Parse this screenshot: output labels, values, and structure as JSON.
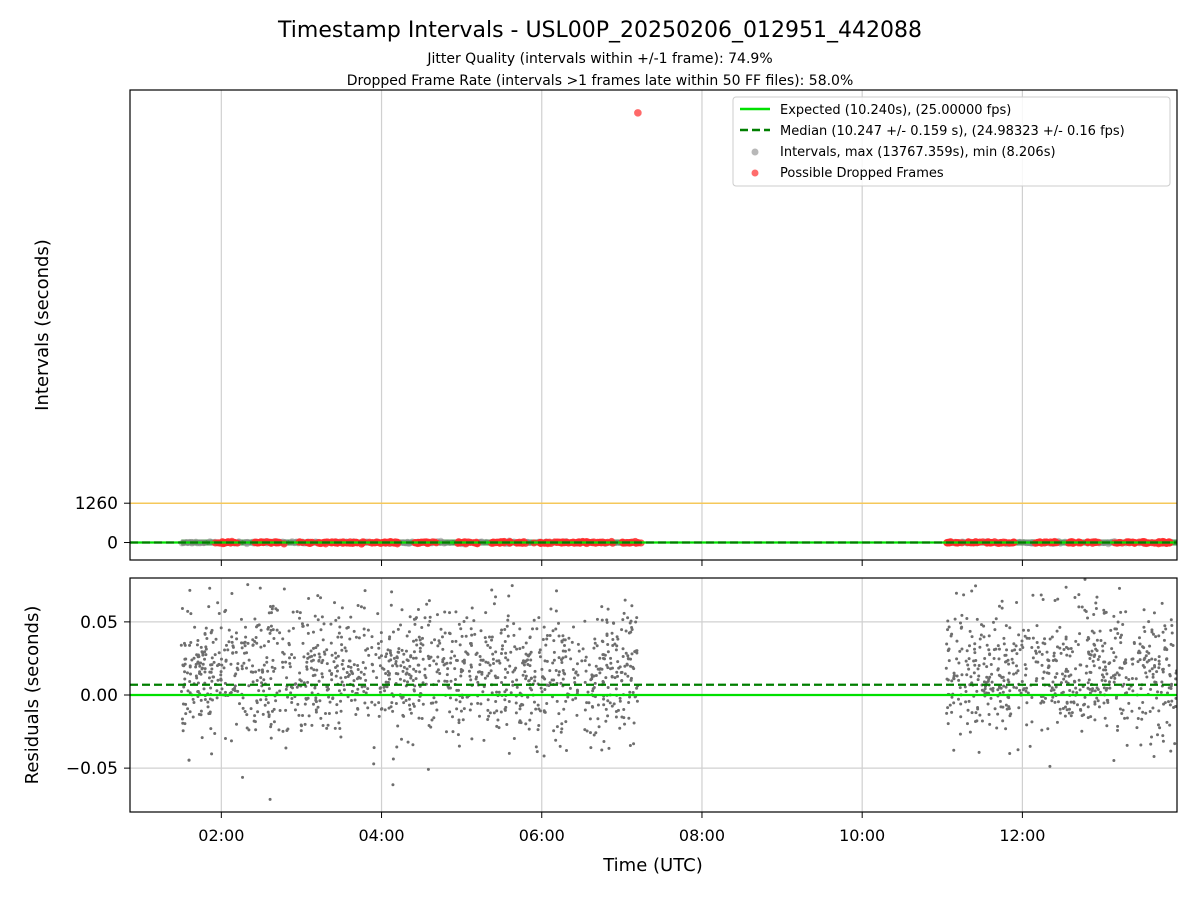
{
  "chart_data": {
    "type": "scatter",
    "title": "Timestamp Intervals - USL00P_20250206_012951_442088",
    "subtitle_lines": [
      "Jitter Quality (intervals within +/-1 frame): 74.9%",
      "Dropped Frame Rate (intervals >1 frames late within 50 FF files): 58.0%"
    ],
    "xlabel": "Time (UTC)",
    "x_range_hours": [
      0.86,
      13.93
    ],
    "x_ticks": [
      {
        "value": 2,
        "label": "02:00"
      },
      {
        "value": 4,
        "label": "04:00"
      },
      {
        "value": 6,
        "label": "06:00"
      },
      {
        "value": 8,
        "label": "08:00"
      },
      {
        "value": 10,
        "label": "10:00"
      },
      {
        "value": 12,
        "label": "12:00"
      }
    ],
    "grid": true,
    "top_panel": {
      "ylabel": "Intervals (seconds)",
      "ylim": [
        -560,
        14500
      ],
      "y_ticks": [
        {
          "value": 0,
          "label": "0"
        },
        {
          "value": 1260,
          "label": "1260"
        }
      ],
      "threshold_line": {
        "value": 1260,
        "color": "#f5c85a"
      },
      "expected": {
        "value": 10.24,
        "color": "#00e000"
      },
      "median": {
        "value": 10.247,
        "color": "#007f00"
      },
      "outlier_point": {
        "x": 7.2,
        "y": 13767.359
      },
      "series_colors": {
        "intervals": "#888888",
        "dropped": "#ff2a2a"
      },
      "data_segments_hours": [
        [
          1.5,
          7.2
        ],
        [
          11.05,
          13.93
        ]
      ],
      "dropped_clusters_hours": [
        [
          1.9,
          2.2
        ],
        [
          2.4,
          2.8
        ],
        [
          2.95,
          3.7
        ],
        [
          3.75,
          4.2
        ],
        [
          4.4,
          4.7
        ],
        [
          4.95,
          5.2
        ],
        [
          5.35,
          5.8
        ],
        [
          5.9,
          6.9
        ],
        [
          7.0,
          7.25
        ],
        [
          11.05,
          11.25
        ],
        [
          11.3,
          11.9
        ],
        [
          12.15,
          12.45
        ],
        [
          12.55,
          12.95
        ],
        [
          13.15,
          13.85
        ]
      ]
    },
    "bottom_panel": {
      "ylabel": "Residuals (seconds)",
      "ylim": [
        -0.08,
        0.08
      ],
      "y_ticks": [
        {
          "value": 0.05,
          "label": "0.05"
        },
        {
          "value": 0.0,
          "label": "0.00"
        },
        {
          "value": -0.05,
          "label": "−0.05"
        }
      ],
      "expected_residual": 0.0,
      "median_residual": 0.007,
      "residual_spread_sd": 0.022,
      "segments_hours": [
        [
          1.5,
          7.2
        ],
        [
          11.05,
          13.93
        ]
      ]
    },
    "legend": {
      "placement": "upper right",
      "entries": [
        {
          "label": "Expected (10.240s), (25.00000 fps)",
          "kind": "line",
          "color": "#00e000"
        },
        {
          "label": "Median (10.247 +/- 0.159 s), (24.98323 +/- 0.16 fps)",
          "kind": "dashed",
          "color": "#007f00"
        },
        {
          "label": "Intervals, max (13767.359s), min (8.206s)",
          "kind": "dot",
          "color": "#888888"
        },
        {
          "label": "Possible Dropped Frames",
          "kind": "dot",
          "color": "#ff3b3b"
        }
      ]
    }
  }
}
